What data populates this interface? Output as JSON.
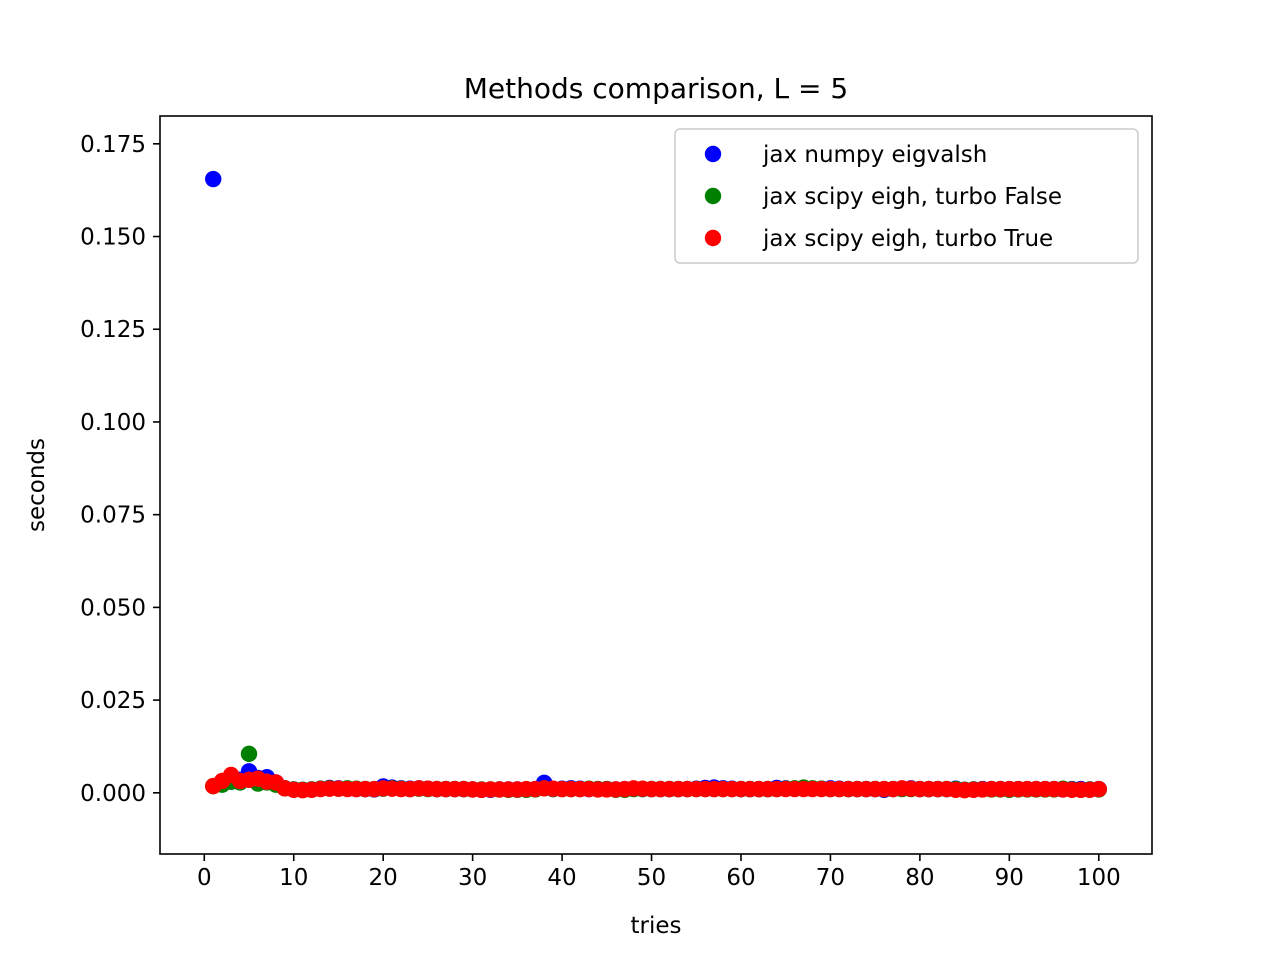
{
  "chart_data": {
    "type": "scatter",
    "title": "Methods comparison, L = 5",
    "xlabel": "tries",
    "ylabel": "seconds",
    "xlim": [
      -4.95,
      105.95
    ],
    "ylim": [
      -0.0165,
      0.1825
    ],
    "xticks": [
      0,
      10,
      20,
      30,
      40,
      50,
      60,
      70,
      80,
      90,
      100
    ],
    "xtick_labels": [
      "0",
      "10",
      "20",
      "30",
      "40",
      "50",
      "60",
      "70",
      "80",
      "90",
      "100"
    ],
    "yticks": [
      0.0,
      0.025,
      0.05,
      0.075,
      0.1,
      0.125,
      0.15,
      0.175
    ],
    "ytick_labels": [
      "0.000",
      "0.025",
      "0.050",
      "0.075",
      "0.100",
      "0.125",
      "0.150",
      "0.175"
    ],
    "grid": false,
    "legend_position": "top-right",
    "x": [
      1,
      2,
      3,
      4,
      5,
      6,
      7,
      8,
      9,
      10,
      11,
      12,
      13,
      14,
      15,
      16,
      17,
      18,
      19,
      20,
      21,
      22,
      23,
      24,
      25,
      26,
      27,
      28,
      29,
      30,
      31,
      32,
      33,
      34,
      35,
      36,
      37,
      38,
      39,
      40,
      41,
      42,
      43,
      44,
      45,
      46,
      47,
      48,
      49,
      50,
      51,
      52,
      53,
      54,
      55,
      56,
      57,
      58,
      59,
      60,
      61,
      62,
      63,
      64,
      65,
      66,
      67,
      68,
      69,
      70,
      71,
      72,
      73,
      74,
      75,
      76,
      77,
      78,
      79,
      80,
      81,
      82,
      83,
      84,
      85,
      86,
      87,
      88,
      89,
      90,
      91,
      92,
      93,
      94,
      95,
      96,
      97,
      98,
      99,
      100
    ],
    "series": [
      {
        "name": "jax numpy eigvalsh",
        "color": "#0000ff",
        "values": [
          0.1655,
          0.0025,
          0.003,
          0.0035,
          0.0058,
          0.004,
          0.0042,
          0.0028,
          0.0012,
          0.0009,
          0.0008,
          0.0009,
          0.0011,
          0.0013,
          0.0012,
          0.0011,
          0.001,
          0.001,
          0.0009,
          0.0017,
          0.0014,
          0.0012,
          0.0011,
          0.0012,
          0.0011,
          0.001,
          0.001,
          0.001,
          0.001,
          0.0009,
          0.0008,
          0.0008,
          0.0009,
          0.0009,
          0.0009,
          0.0009,
          0.001,
          0.0027,
          0.001,
          0.0011,
          0.0012,
          0.0011,
          0.001,
          0.001,
          0.001,
          0.0009,
          0.001,
          0.0011,
          0.001,
          0.001,
          0.001,
          0.001,
          0.001,
          0.001,
          0.0011,
          0.0013,
          0.0014,
          0.0012,
          0.0011,
          0.001,
          0.001,
          0.001,
          0.001,
          0.0013,
          0.0012,
          0.0011,
          0.0012,
          0.0011,
          0.0011,
          0.0012,
          0.0011,
          0.001,
          0.001,
          0.001,
          0.001,
          0.0008,
          0.001,
          0.0011,
          0.0012,
          0.001,
          0.001,
          0.001,
          0.001,
          0.0011,
          0.0008,
          0.0009,
          0.001,
          0.001,
          0.001,
          0.001,
          0.001,
          0.001,
          0.001,
          0.001,
          0.001,
          0.0009,
          0.001,
          0.001,
          0.0009,
          0.001
        ]
      },
      {
        "name": "jax scipy eigh, turbo False",
        "color": "#008000",
        "values": [
          0.0018,
          0.0022,
          0.003,
          0.0028,
          0.0105,
          0.0025,
          0.0028,
          0.0022,
          0.0012,
          0.0009,
          0.0008,
          0.0009,
          0.0011,
          0.0012,
          0.0011,
          0.0012,
          0.0011,
          0.001,
          0.001,
          0.0011,
          0.0012,
          0.0011,
          0.001,
          0.0011,
          0.001,
          0.001,
          0.001,
          0.001,
          0.001,
          0.0009,
          0.0009,
          0.0009,
          0.0009,
          0.0008,
          0.0008,
          0.0008,
          0.0009,
          0.0012,
          0.001,
          0.001,
          0.001,
          0.001,
          0.0011,
          0.001,
          0.001,
          0.0008,
          0.0008,
          0.001,
          0.001,
          0.001,
          0.001,
          0.001,
          0.001,
          0.001,
          0.001,
          0.001,
          0.001,
          0.001,
          0.001,
          0.001,
          0.001,
          0.001,
          0.001,
          0.001,
          0.0011,
          0.0012,
          0.0014,
          0.0012,
          0.0011,
          0.001,
          0.001,
          0.001,
          0.001,
          0.001,
          0.001,
          0.001,
          0.001,
          0.001,
          0.001,
          0.001,
          0.001,
          0.001,
          0.001,
          0.001,
          0.0008,
          0.0009,
          0.0009,
          0.0009,
          0.0009,
          0.0008,
          0.0009,
          0.0009,
          0.0009,
          0.0009,
          0.0009,
          0.0011,
          0.0009,
          0.0008,
          0.0009,
          0.0009
        ]
      },
      {
        "name": "jax scipy eigh, turbo True",
        "color": "#ff0000",
        "values": [
          0.0018,
          0.0032,
          0.0048,
          0.0032,
          0.0035,
          0.0038,
          0.003,
          0.0028,
          0.0012,
          0.0008,
          0.0007,
          0.0008,
          0.001,
          0.0011,
          0.0011,
          0.001,
          0.001,
          0.001,
          0.001,
          0.0012,
          0.0011,
          0.001,
          0.001,
          0.0012,
          0.0011,
          0.001,
          0.001,
          0.001,
          0.001,
          0.0009,
          0.0008,
          0.0009,
          0.0009,
          0.0009,
          0.0009,
          0.001,
          0.001,
          0.0012,
          0.0011,
          0.001,
          0.001,
          0.001,
          0.001,
          0.0009,
          0.0009,
          0.0009,
          0.001,
          0.0012,
          0.0011,
          0.001,
          0.001,
          0.001,
          0.001,
          0.001,
          0.001,
          0.001,
          0.001,
          0.001,
          0.001,
          0.001,
          0.001,
          0.001,
          0.001,
          0.001,
          0.001,
          0.001,
          0.001,
          0.001,
          0.001,
          0.001,
          0.001,
          0.001,
          0.001,
          0.001,
          0.001,
          0.001,
          0.001,
          0.0012,
          0.0011,
          0.001,
          0.001,
          0.001,
          0.001,
          0.0008,
          0.0007,
          0.0008,
          0.0009,
          0.001,
          0.001,
          0.001,
          0.001,
          0.001,
          0.001,
          0.001,
          0.001,
          0.0009,
          0.0008,
          0.0008,
          0.0008,
          0.001
        ]
      }
    ]
  }
}
